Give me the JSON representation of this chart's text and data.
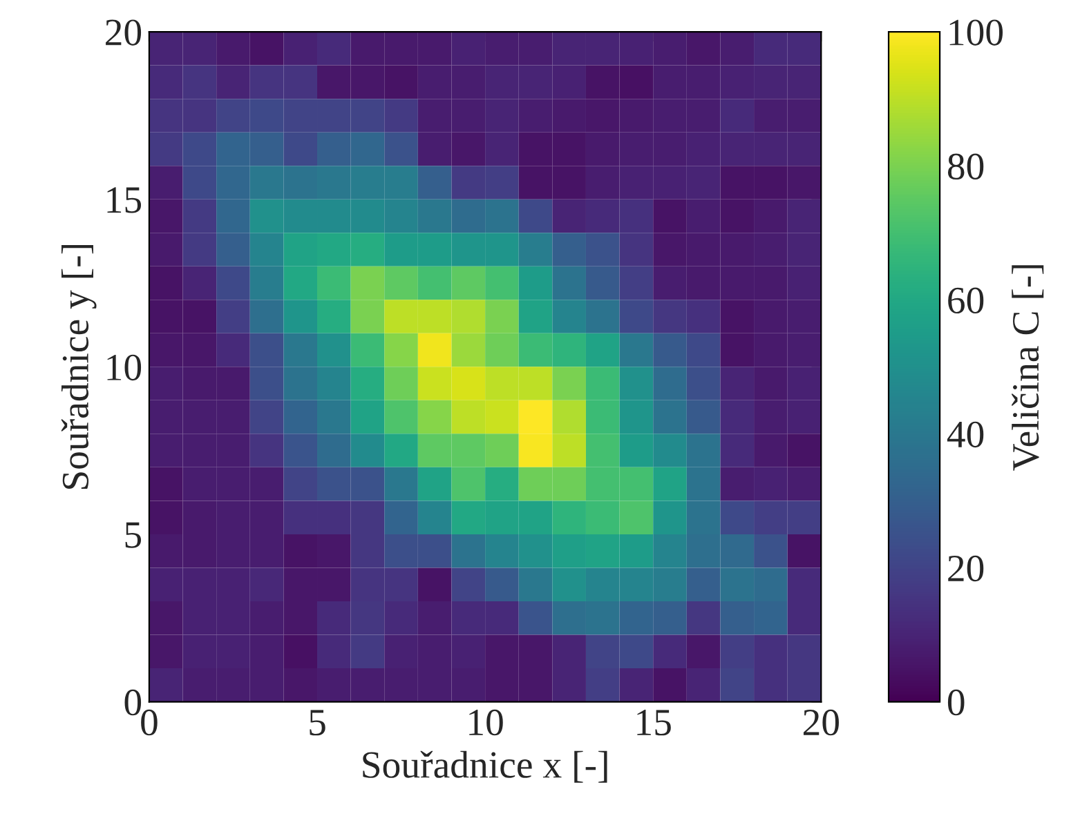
{
  "chart_data": {
    "type": "heatmap",
    "xlabel": "Souřadnice x [-]",
    "ylabel": "Souřadnice y [-]",
    "clabel": "Veličina C [-]",
    "xlim": [
      0,
      20
    ],
    "ylim": [
      0,
      20
    ],
    "xticks": [
      0,
      5,
      10,
      15,
      20
    ],
    "yticks": [
      0,
      5,
      10,
      15,
      20
    ],
    "clim": [
      0,
      100
    ],
    "cticks": [
      0,
      20,
      40,
      60,
      80,
      100
    ],
    "cells": [
      [
        10,
        10,
        7,
        5,
        9,
        12,
        7,
        7,
        7,
        9,
        8,
        8,
        10,
        10,
        9,
        8,
        6,
        8,
        12,
        12
      ],
      [
        12,
        15,
        10,
        15,
        15,
        6,
        6,
        5,
        8,
        8,
        10,
        10,
        9,
        5,
        4,
        8,
        8,
        9,
        10,
        10
      ],
      [
        15,
        15,
        20,
        22,
        20,
        20,
        20,
        17,
        8,
        8,
        10,
        8,
        7,
        6,
        7,
        8,
        8,
        12,
        8,
        8
      ],
      [
        17,
        22,
        32,
        30,
        22,
        30,
        33,
        25,
        8,
        6,
        10,
        5,
        5,
        7,
        8,
        8,
        9,
        10,
        10,
        10
      ],
      [
        8,
        22,
        33,
        40,
        38,
        40,
        42,
        42,
        30,
        17,
        18,
        5,
        5,
        8,
        9,
        9,
        10,
        5,
        5,
        6
      ],
      [
        6,
        17,
        33,
        50,
        48,
        48,
        48,
        45,
        40,
        35,
        38,
        22,
        10,
        12,
        14,
        5,
        8,
        5,
        7,
        10
      ],
      [
        7,
        17,
        30,
        45,
        58,
        60,
        62,
        55,
        55,
        52,
        52,
        42,
        30,
        25,
        15,
        6,
        7,
        7,
        8,
        10
      ],
      [
        5,
        10,
        22,
        42,
        60,
        68,
        80,
        75,
        70,
        75,
        70,
        55,
        38,
        28,
        18,
        8,
        7,
        7,
        7,
        9
      ],
      [
        5,
        5,
        18,
        36,
        52,
        62,
        80,
        90,
        90,
        88,
        80,
        58,
        45,
        38,
        22,
        16,
        14,
        5,
        7,
        8
      ],
      [
        6,
        6,
        12,
        24,
        40,
        50,
        68,
        82,
        98,
        85,
        78,
        68,
        65,
        58,
        40,
        28,
        22,
        5,
        7,
        8
      ],
      [
        8,
        7,
        7,
        24,
        38,
        45,
        62,
        78,
        92,
        94,
        90,
        90,
        80,
        68,
        50,
        35,
        24,
        10,
        7,
        9
      ],
      [
        8,
        8,
        8,
        20,
        32,
        40,
        58,
        72,
        82,
        90,
        92,
        100,
        88,
        68,
        52,
        38,
        28,
        12,
        8,
        9
      ],
      [
        8,
        8,
        8,
        15,
        26,
        35,
        48,
        60,
        75,
        75,
        78,
        99,
        90,
        70,
        55,
        48,
        38,
        12,
        7,
        5
      ],
      [
        5,
        8,
        8,
        8,
        20,
        25,
        25,
        40,
        58,
        72,
        62,
        78,
        78,
        70,
        70,
        58,
        38,
        8,
        9,
        8
      ],
      [
        5,
        7,
        8,
        8,
        14,
        14,
        16,
        32,
        45,
        60,
        58,
        58,
        65,
        68,
        72,
        52,
        38,
        22,
        18,
        18
      ],
      [
        7,
        7,
        8,
        8,
        5,
        6,
        16,
        24,
        24,
        38,
        45,
        50,
        56,
        58,
        55,
        45,
        36,
        34,
        25,
        5
      ],
      [
        9,
        9,
        9,
        11,
        6,
        6,
        15,
        15,
        5,
        20,
        28,
        40,
        50,
        45,
        45,
        42,
        30,
        38,
        35,
        12
      ],
      [
        6,
        9,
        9,
        8,
        6,
        12,
        16,
        12,
        8,
        12,
        12,
        26,
        36,
        38,
        32,
        30,
        16,
        30,
        32,
        12
      ],
      [
        6,
        9,
        9,
        8,
        4,
        12,
        17,
        9,
        8,
        9,
        6,
        6,
        10,
        20,
        22,
        12,
        6,
        18,
        14,
        16
      ],
      [
        10,
        8,
        8,
        8,
        6,
        8,
        8,
        8,
        8,
        8,
        6,
        6,
        10,
        18,
        10,
        5,
        10,
        20,
        14,
        16
      ]
    ]
  }
}
